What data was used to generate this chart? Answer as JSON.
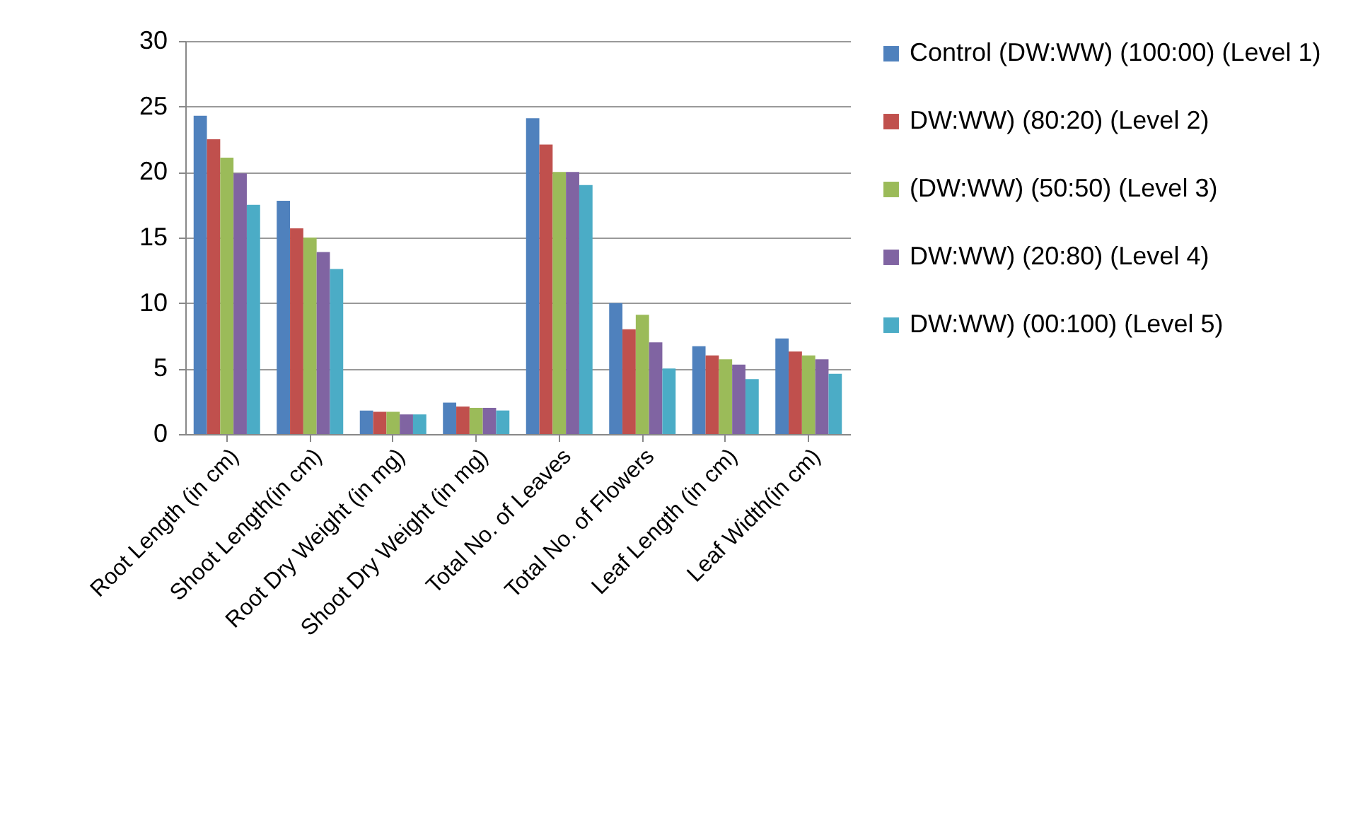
{
  "chart_data": {
    "type": "bar",
    "categories": [
      "Root Length (in cm)",
      "Shoot Length(in cm)",
      "Root Dry Weight (in mg)",
      "Shoot Dry Weight (in mg)",
      "Total No. of Leaves",
      "Total No. of Flowers",
      "Leaf Length (in cm)",
      "Leaf Width(in cm)"
    ],
    "series": [
      {
        "name": "Control (DW:WW) (100:00) (Level 1)",
        "color": "#4f81bd",
        "values": [
          24.3,
          17.8,
          1.8,
          2.4,
          24.1,
          10.0,
          6.7,
          7.3
        ]
      },
      {
        "name": "DW:WW) (80:20) (Level 2)",
        "color": "#c0504d",
        "values": [
          22.5,
          15.7,
          1.7,
          2.1,
          22.1,
          8.0,
          6.0,
          6.3
        ]
      },
      {
        "name": "(DW:WW) (50:50) (Level 3)",
        "color": "#9bbb59",
        "values": [
          21.1,
          15.0,
          1.7,
          2.0,
          20.0,
          9.1,
          5.7,
          6.0
        ]
      },
      {
        "name": "DW:WW) (20:80) (Level 4)",
        "color": "#8064a2",
        "values": [
          19.9,
          13.9,
          1.5,
          2.0,
          20.0,
          7.0,
          5.3,
          5.7
        ]
      },
      {
        "name": "DW:WW) (00:100) (Level 5)",
        "color": "#4bacc6",
        "values": [
          17.5,
          12.6,
          1.5,
          1.8,
          19.0,
          5.0,
          4.2,
          4.6
        ]
      }
    ],
    "ylim": [
      0,
      30
    ],
    "yticks": [
      0,
      5,
      10,
      15,
      20,
      25,
      30
    ],
    "grid": "y",
    "legend": "right"
  }
}
